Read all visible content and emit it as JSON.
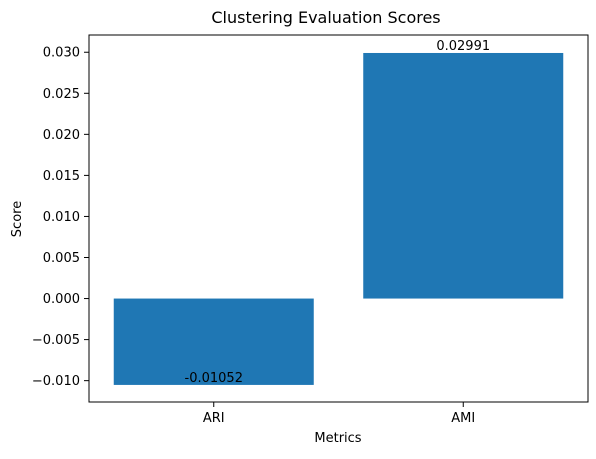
{
  "chart_data": {
    "type": "bar",
    "title": "Clustering Evaluation Scores",
    "xlabel": "Metrics",
    "ylabel": "Score",
    "categories": [
      "ARI",
      "AMI"
    ],
    "values": [
      -0.01052,
      0.02991
    ],
    "value_labels": [
      "-0.01052",
      "0.02991"
    ],
    "ylim": [
      -0.0126,
      0.0321
    ],
    "yticks": [
      -0.01,
      -0.005,
      0.0,
      0.005,
      0.01,
      0.015,
      0.02,
      0.025,
      0.03
    ],
    "ytick_labels": [
      "−0.010",
      "−0.005",
      "0.000",
      "0.005",
      "0.010",
      "0.015",
      "0.020",
      "0.025",
      "0.030"
    ],
    "bar_color": "#1f77b4",
    "grid": false,
    "legend": "none"
  }
}
